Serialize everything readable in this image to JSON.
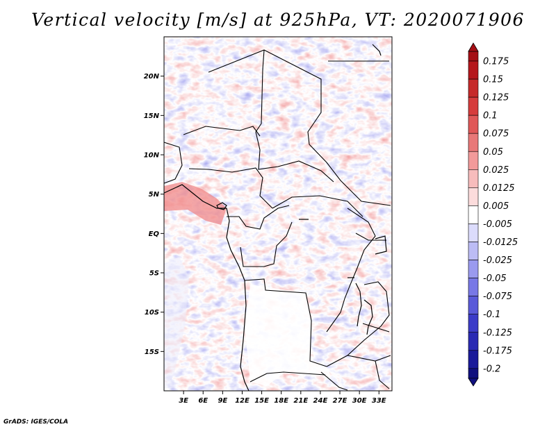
{
  "title": "Vertical velocity [m/s] at 925hPa, VT: 2020071906",
  "credit": "GrADS: IGES/COLA",
  "map": {
    "lon_range": [
      0,
      35
    ],
    "lat_range": [
      -20,
      25
    ],
    "lat_ticks": [
      {
        "lat": 20,
        "label": "20N"
      },
      {
        "lat": 15,
        "label": "15N"
      },
      {
        "lat": 10,
        "label": "10N"
      },
      {
        "lat": 5,
        "label": "5N"
      },
      {
        "lat": 0,
        "label": "EQ"
      },
      {
        "lat": -5,
        "label": "5S"
      },
      {
        "lat": -10,
        "label": "10S"
      },
      {
        "lat": -15,
        "label": "15S"
      }
    ],
    "lon_ticks": [
      {
        "lon": 3,
        "label": "3E"
      },
      {
        "lon": 6,
        "label": "6E"
      },
      {
        "lon": 9,
        "label": "9E"
      },
      {
        "lon": 12,
        "label": "12E"
      },
      {
        "lon": 15,
        "label": "15E"
      },
      {
        "lon": 18,
        "label": "18E"
      },
      {
        "lon": 21,
        "label": "21E"
      },
      {
        "lon": 24,
        "label": "24E"
      },
      {
        "lon": 27,
        "label": "27E"
      },
      {
        "lon": 30,
        "label": "30E"
      },
      {
        "lon": 33,
        "label": "33E"
      }
    ]
  },
  "colorbar": {
    "labels": [
      "0.175",
      "0.15",
      "0.125",
      "0.1",
      "0.075",
      "0.05",
      "0.025",
      "0.0125",
      "0.005",
      "-0.005",
      "-0.0125",
      "-0.025",
      "-0.05",
      "-0.075",
      "-0.1",
      "-0.125",
      "-0.175",
      "-0.2"
    ],
    "colors": [
      "#a50f15",
      "#b5171c",
      "#c62a2a",
      "#d63c3c",
      "#e05858",
      "#e87878",
      "#f29a9a",
      "#f7bcbc",
      "#fcdcdc",
      "#ffffff",
      "#dcdcfc",
      "#bcbcf5",
      "#9a9aef",
      "#7878e6",
      "#5a5ad9",
      "#3c3cc8",
      "#2a2ab3",
      "#1a1a9a",
      "#10107e"
    ]
  }
}
